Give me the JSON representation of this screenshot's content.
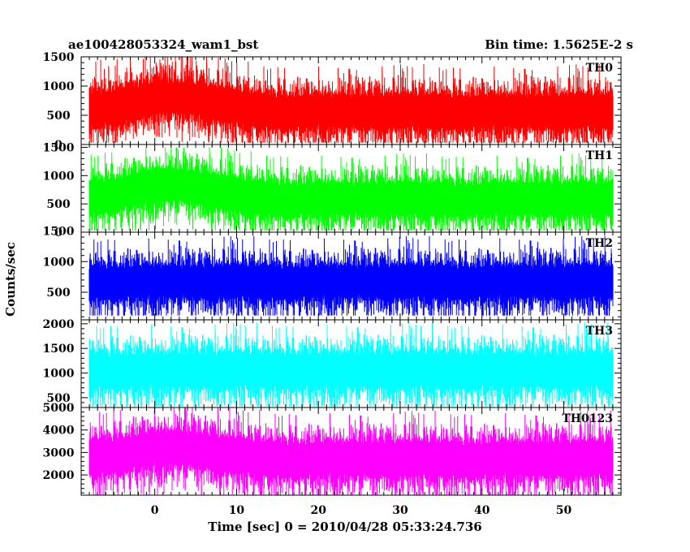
{
  "chart_data": {
    "type": "line",
    "title_left": "ae100428053324_wam1_bst",
    "title_right": "Bin time: 1.5625E-2 s",
    "xlabel": "Time [sec] 0 = 2010/04/28 05:33:24.736",
    "ylabel": "Counts/sec",
    "xlim": [
      -9,
      57
    ],
    "x_ticks": [
      0,
      10,
      20,
      30,
      40,
      50
    ],
    "data_x_range": [
      -8,
      56
    ],
    "bin_time": 0.015625,
    "panels": [
      {
        "name": "TH0",
        "color": "#ff0000",
        "ylim": [
          0,
          1500
        ],
        "y_ticks": [
          0,
          500,
          1000,
          1500
        ],
        "noise": {
          "mean": 600,
          "min": 30,
          "max": 1500,
          "burst_peak_x": 2,
          "burst_extra": 250
        }
      },
      {
        "name": "TH1",
        "color": "#00ff00",
        "ylim": [
          0,
          1550
        ],
        "y_ticks": [
          0,
          500,
          1000,
          1500
        ],
        "noise": {
          "mean": 620,
          "min": 30,
          "max": 1500,
          "burst_peak_x": 2,
          "burst_extra": 250
        }
      },
      {
        "name": "TH2",
        "color": "#0000ff",
        "ylim": [
          50,
          1480
        ],
        "y_ticks": [
          500,
          1000,
          1500
        ],
        "noise": {
          "mean": 700,
          "min": 120,
          "max": 1480,
          "burst_peak_x": 2,
          "burst_extra": 0
        }
      },
      {
        "name": "TH3",
        "color": "#00ffff",
        "ylim": [
          300,
          2080
        ],
        "y_ticks": [
          500,
          1000,
          1500,
          2000
        ],
        "noise": {
          "mean": 1100,
          "min": 320,
          "max": 2080,
          "burst_peak_x": 2,
          "burst_extra": 0
        }
      },
      {
        "name": "TH0123",
        "color": "#ff00ff",
        "ylim": [
          1100,
          5000
        ],
        "y_ticks": [
          2000,
          3000,
          4000,
          5000
        ],
        "noise": {
          "mean": 2800,
          "min": 1100,
          "max": 5000,
          "burst_peak_x": 2,
          "burst_extra": 500
        }
      }
    ]
  }
}
